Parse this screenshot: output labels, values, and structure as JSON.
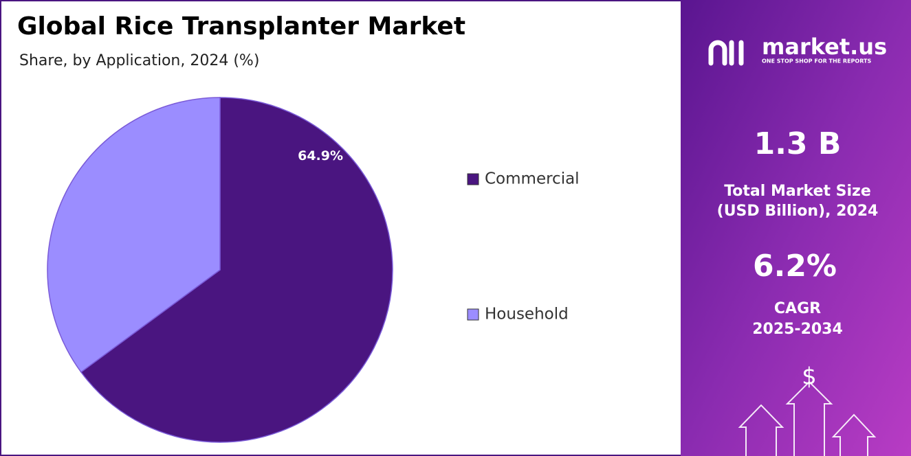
{
  "chart_data": {
    "type": "pie",
    "title": "Global Rice Transplanter Market",
    "subtitle": "Share, by Application, 2024 (%)",
    "categories": [
      "Commercial",
      "Household"
    ],
    "values": [
      64.9,
      35.1
    ],
    "value_labels": [
      "64.9%",
      null
    ],
    "colors": [
      "#4a1580",
      "#9b8dff"
    ],
    "legend": "right"
  },
  "panel": {
    "logo": "market.us",
    "tagline": "ONE STOP SHOP FOR THE REPORTS",
    "market_size": "1.3 B",
    "market_size_label": [
      "Total Market Size",
      "(USD Billion), 2024"
    ],
    "cagr": "6.2%",
    "cagr_label": [
      "CAGR",
      "2025-2034"
    ],
    "icon": "$"
  }
}
